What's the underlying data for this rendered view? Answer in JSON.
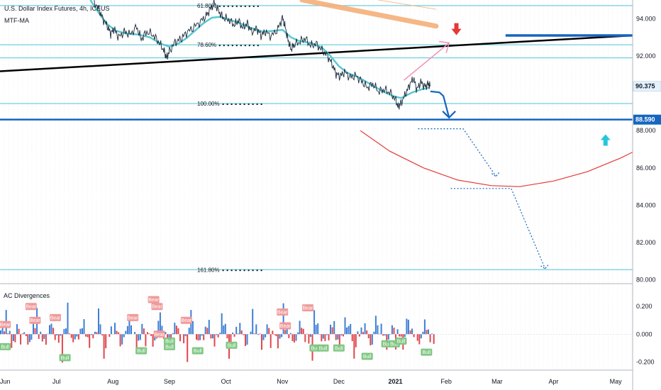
{
  "header": {
    "title": "U.S. Dollar Index Futures, 4h, ICEUS",
    "indicator": "MTF-MA"
  },
  "colors": {
    "price": "#1b2a3a",
    "ma": "#5cc8d0",
    "fib_line": "#4ec3d6",
    "trendline": "#000000",
    "blue_level": "#1565c0",
    "red_arc": "#e53935",
    "orange_band": "#f5b07a",
    "pink_arrow": "#f48fb1",
    "down_arrow": "#e53935",
    "up_arrow": "#26c6da",
    "bull_bar": "#3f7fd4",
    "bear_bar": "#e0474c",
    "bear_badge": "#ef9a9a",
    "bull_badge": "#81c784",
    "price_tag_bg": "#ffffff",
    "current_tag_bg": "#e3f2fd"
  },
  "chart_data": [
    {
      "type": "line",
      "y_axis": {
        "min": 79.8,
        "max": 95.0,
        "ticks": [
          {
            "value": 94.0,
            "label": "94.000"
          },
          {
            "value": 92.0,
            "label": "92.000"
          },
          {
            "value": 88.0,
            "label": "88.000"
          },
          {
            "value": 86.0,
            "label": "86.000"
          },
          {
            "value": 84.0,
            "label": "84.000"
          },
          {
            "value": 82.0,
            "label": "82.000"
          },
          {
            "value": 80.0,
            "label": "80.000"
          }
        ]
      },
      "x_axis": {
        "min": 0,
        "max": 11.2,
        "ticks": [
          {
            "value": 0.0,
            "label": "Jun"
          },
          {
            "value": 1.0,
            "label": "Jul"
          },
          {
            "value": 2.0,
            "label": "Aug"
          },
          {
            "value": 3.0,
            "label": "Sep"
          },
          {
            "value": 4.0,
            "label": "Oct"
          },
          {
            "value": 5.0,
            "label": "Nov"
          },
          {
            "value": 6.0,
            "label": "Dec"
          },
          {
            "value": 7.0,
            "label": "2021"
          },
          {
            "value": 7.9,
            "label": "Feb"
          },
          {
            "value": 8.8,
            "label": "Mar"
          },
          {
            "value": 9.8,
            "label": "Apr"
          },
          {
            "value": 10.9,
            "label": "May"
          }
        ]
      },
      "price_tags": {
        "current": {
          "value": 90.375,
          "label": "90.375"
        },
        "level": {
          "value": 88.59,
          "label": "88.590"
        }
      },
      "fib_levels": [
        {
          "value": 94.7,
          "label": "61.80%"
        },
        {
          "value": 92.6,
          "label": "78.60%"
        },
        {
          "value": 91.9,
          "label": ""
        },
        {
          "value": 89.45,
          "label": "100.00%"
        },
        {
          "value": 80.55,
          "label": "161.80%"
        }
      ],
      "series": [
        {
          "key": "price",
          "points": [
            [
              1.65,
              95.0
            ],
            [
              1.75,
              94.5
            ],
            [
              1.82,
              94.0
            ],
            [
              1.9,
              93.6
            ],
            [
              1.96,
              93.2
            ],
            [
              2.02,
              93.45
            ],
            [
              2.1,
              93.0
            ],
            [
              2.2,
              93.3
            ],
            [
              2.3,
              93.15
            ],
            [
              2.42,
              93.55
            ],
            [
              2.5,
              92.9
            ],
            [
              2.6,
              93.3
            ],
            [
              2.72,
              93.1
            ],
            [
              2.82,
              92.7
            ],
            [
              2.9,
              92.3
            ],
            [
              2.95,
              91.9
            ],
            [
              3.0,
              92.25
            ],
            [
              3.1,
              92.75
            ],
            [
              3.2,
              92.9
            ],
            [
              3.3,
              93.25
            ],
            [
              3.42,
              93.5
            ],
            [
              3.55,
              93.85
            ],
            [
              3.65,
              94.15
            ],
            [
              3.72,
              94.5
            ],
            [
              3.8,
              94.85
            ],
            [
              3.88,
              94.35
            ],
            [
              3.95,
              94.05
            ],
            [
              4.05,
              93.95
            ],
            [
              4.15,
              93.65
            ],
            [
              4.22,
              93.9
            ],
            [
              4.3,
              93.5
            ],
            [
              4.38,
              93.75
            ],
            [
              4.45,
              93.3
            ],
            [
              4.55,
              93.45
            ],
            [
              4.62,
              93.1
            ],
            [
              4.7,
              93.3
            ],
            [
              4.8,
              93.05
            ],
            [
              4.92,
              93.45
            ],
            [
              5.0,
              94.05
            ],
            [
              5.05,
              93.55
            ],
            [
              5.1,
              92.85
            ],
            [
              5.15,
              92.35
            ],
            [
              5.2,
              92.6
            ],
            [
              5.3,
              92.75
            ],
            [
              5.4,
              92.95
            ],
            [
              5.5,
              92.55
            ],
            [
              5.6,
              92.65
            ],
            [
              5.7,
              92.3
            ],
            [
              5.8,
              92.0
            ],
            [
              5.88,
              91.55
            ],
            [
              5.95,
              91.05
            ],
            [
              6.02,
              90.9
            ],
            [
              6.1,
              91.15
            ],
            [
              6.2,
              90.85
            ],
            [
              6.3,
              90.95
            ],
            [
              6.4,
              90.65
            ],
            [
              6.5,
              90.3
            ],
            [
              6.6,
              90.5
            ],
            [
              6.7,
              90.1
            ],
            [
              6.8,
              90.2
            ],
            [
              6.9,
              90.05
            ],
            [
              7.0,
              89.7
            ],
            [
              7.05,
              89.25
            ],
            [
              7.1,
              89.5
            ],
            [
              7.18,
              89.95
            ],
            [
              7.25,
              90.45
            ],
            [
              7.32,
              90.8
            ],
            [
              7.38,
              90.2
            ],
            [
              7.45,
              90.6
            ],
            [
              7.52,
              90.35
            ],
            [
              7.58,
              90.5
            ],
            [
              7.62,
              90.375
            ]
          ],
          "cycles": 70,
          "amplitude": 0.28
        },
        {
          "key": "ma",
          "points": [
            [
              1.6,
              95.0
            ],
            [
              1.75,
              94.3
            ],
            [
              1.9,
              93.7
            ],
            [
              2.05,
              93.35
            ],
            [
              2.25,
              93.2
            ],
            [
              2.45,
              93.15
            ],
            [
              2.65,
              93.0
            ],
            [
              2.85,
              92.65
            ],
            [
              3.0,
              92.5
            ],
            [
              3.15,
              92.65
            ],
            [
              3.3,
              92.95
            ],
            [
              3.45,
              93.35
            ],
            [
              3.6,
              93.75
            ],
            [
              3.75,
              94.05
            ],
            [
              3.9,
              94.1
            ],
            [
              4.05,
              93.95
            ],
            [
              4.25,
              93.75
            ],
            [
              4.45,
              93.5
            ],
            [
              4.65,
              93.3
            ],
            [
              4.85,
              93.35
            ],
            [
              5.0,
              93.4
            ],
            [
              5.15,
              93.0
            ],
            [
              5.3,
              92.8
            ],
            [
              5.5,
              92.7
            ],
            [
              5.7,
              92.45
            ],
            [
              5.85,
              92.0
            ],
            [
              6.0,
              91.45
            ],
            [
              6.15,
              91.1
            ],
            [
              6.35,
              90.85
            ],
            [
              6.55,
              90.5
            ],
            [
              6.75,
              90.15
            ],
            [
              6.95,
              89.85
            ],
            [
              7.1,
              89.75
            ],
            [
              7.3,
              90.05
            ],
            [
              7.45,
              90.2
            ],
            [
              7.6,
              90.3
            ]
          ]
        }
      ],
      "orange_band": {
        "start": [
          5.35,
          95.0
        ],
        "end": [
          7.72,
          93.6
        ],
        "upper_start": [
          6.7,
          95.0
        ],
        "upper_end": [
          7.72,
          94.5
        ]
      },
      "trendline": {
        "start": [
          0.0,
          91.18
        ],
        "end": [
          11.2,
          93.1
        ]
      },
      "blue_level_short": {
        "x1": 8.95,
        "x2": 11.2,
        "value": 93.1
      },
      "blue_level": {
        "value": 88.59
      },
      "projection_arrow": {
        "points": [
          [
            7.62,
            90.1
          ],
          [
            7.78,
            90.05
          ],
          [
            7.85,
            89.85
          ],
          [
            7.95,
            88.7
          ]
        ]
      },
      "pink_arrow": {
        "start": [
          7.15,
          90.7
        ],
        "end": [
          7.95,
          92.7
        ]
      },
      "red_arrow": {
        "x": 8.08,
        "value": 93.15
      },
      "cyan_arrow": {
        "x": 10.72,
        "value": 87.8
      },
      "red_arc": {
        "points": [
          [
            6.38,
            88.0
          ],
          [
            6.9,
            86.9
          ],
          [
            7.5,
            86.0
          ],
          [
            8.1,
            85.35
          ],
          [
            8.7,
            85.05
          ],
          [
            9.2,
            85.0
          ],
          [
            9.8,
            85.3
          ],
          [
            10.4,
            85.8
          ],
          [
            11.0,
            86.55
          ],
          [
            11.2,
            86.85
          ]
        ]
      },
      "dotted_paths": [
        {
          "points": [
            [
              7.4,
              88.1
            ],
            [
              8.2,
              88.1
            ],
            [
              8.78,
              85.55
            ]
          ]
        },
        {
          "points": [
            [
              7.98,
              84.9
            ],
            [
              9.05,
              84.9
            ],
            [
              9.65,
              80.6
            ]
          ]
        }
      ]
    },
    {
      "type": "bar",
      "title": "AC Divergences",
      "y_axis": {
        "min": -0.26,
        "max": 0.36,
        "ticks": [
          {
            "value": 0.2,
            "label": "0.200"
          },
          {
            "value": 0.0,
            "label": "0.000"
          },
          {
            "value": -0.2,
            "label": "-0.200"
          }
        ]
      },
      "bars": {
        "count": 240,
        "x_start": 0.0,
        "x_end": 7.7
      },
      "badges": [
        {
          "x": 0.09,
          "value": 0.07,
          "label": "Bear"
        },
        {
          "x": 0.09,
          "value": -0.09,
          "label": "Bull"
        },
        {
          "x": 0.55,
          "value": 0.2,
          "label": "Bear"
        },
        {
          "x": 0.62,
          "value": 0.1,
          "label": "Bear"
        },
        {
          "x": 0.98,
          "value": 0.12,
          "label": "Bear"
        },
        {
          "x": 1.15,
          "value": -0.17,
          "label": "Bull"
        },
        {
          "x": 2.35,
          "value": 0.12,
          "label": "Bear"
        },
        {
          "x": 2.5,
          "value": -0.12,
          "label": "Bull"
        },
        {
          "x": 2.72,
          "value": 0.25,
          "label": "Bear"
        },
        {
          "x": 2.78,
          "value": 0.2,
          "label": "Bear"
        },
        {
          "x": 2.82,
          "value": 0.0,
          "label": "Bear"
        },
        {
          "x": 3.0,
          "value": -0.09,
          "label": "Bull"
        },
        {
          "x": 3.0,
          "value": -0.05,
          "label": "Bull"
        },
        {
          "x": 3.3,
          "value": 0.1,
          "label": "Bear"
        },
        {
          "x": 3.5,
          "value": -0.12,
          "label": "Bull"
        },
        {
          "x": 4.1,
          "value": -0.08,
          "label": "Bull"
        },
        {
          "x": 5.0,
          "value": 0.16,
          "label": "Bear"
        },
        {
          "x": 5.05,
          "value": 0.06,
          "label": "Bear"
        },
        {
          "x": 5.45,
          "value": 0.19,
          "label": "Bear"
        },
        {
          "x": 5.58,
          "value": -0.1,
          "label": "Bull"
        },
        {
          "x": 5.72,
          "value": -0.1,
          "label": "Bull"
        },
        {
          "x": 6.0,
          "value": -0.1,
          "label": "Bull"
        },
        {
          "x": 6.5,
          "value": -0.16,
          "label": "Bull"
        },
        {
          "x": 6.85,
          "value": -0.07,
          "label": "Bull"
        },
        {
          "x": 6.98,
          "value": -0.07,
          "label": "Bull"
        },
        {
          "x": 7.1,
          "value": -0.05,
          "label": "Bull"
        },
        {
          "x": 7.55,
          "value": -0.13,
          "label": "Bull"
        }
      ]
    }
  ]
}
